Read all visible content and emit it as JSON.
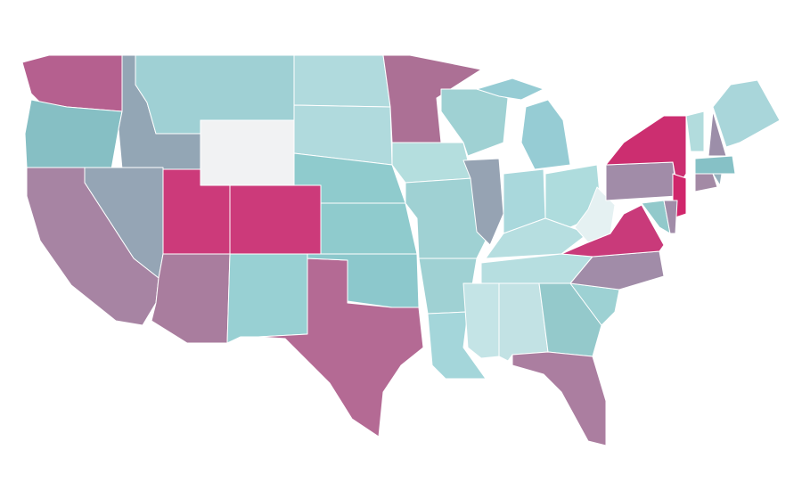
{
  "map": {
    "fills": [
      "#b5608f",
      "#86bfc4",
      "#93a6b5",
      "#9fd0d4",
      "#f1f2f3",
      "#b0dadd",
      "#b0dadd",
      "#8fcbcd",
      "#8fcbcd",
      "#cc3a7a",
      "#cc3a7a",
      "#95a5b5",
      "#a784a3",
      "#a97d9e",
      "#98d0d3",
      "#b46a94",
      "#8cc8cc",
      "#ac7095",
      "#b4dede",
      "#9fd1d3",
      "#9fd1d3",
      "#a4d6da",
      "#9fd1d3",
      "#96a3b3",
      "#96ccd4",
      "#96ccd4",
      "#a9d8dc",
      "#aedcdd",
      "#b6dee0",
      "#b6dee0",
      "#c4e4e6",
      "#c2e2e4",
      "#94c9cb",
      "#ab7ea0",
      "#9dd1d3",
      "#a18ca8",
      "#c93a7a",
      "#e5f1f2",
      "#a18ca8",
      "#cc2e70",
      "#d0266b",
      "#92c9cb",
      "#a18ca8",
      "#b2dcdd",
      "#9c8ea9",
      "#a9d6da",
      "#86c1c6",
      "#a38aa5",
      "#96b1bd"
    ]
  }
}
